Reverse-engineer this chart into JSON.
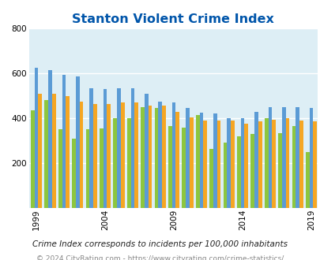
{
  "title": "Stanton Violent Crime Index",
  "subtitle": "Crime Index corresponds to incidents per 100,000 inhabitants",
  "copyright": "© 2024 CityRating.com - https://www.cityrating.com/crime-statistics/",
  "years": [
    1999,
    2000,
    2001,
    2002,
    2003,
    2004,
    2005,
    2006,
    2007,
    2008,
    2009,
    2010,
    2011,
    2012,
    2013,
    2014,
    2015,
    2016,
    2017,
    2018,
    2019
  ],
  "stanton": [
    435,
    480,
    350,
    310,
    350,
    355,
    400,
    400,
    450,
    445,
    365,
    360,
    415,
    265,
    290,
    320,
    330,
    400,
    335,
    365,
    250
  ],
  "california": [
    625,
    615,
    595,
    585,
    535,
    530,
    535,
    535,
    510,
    475,
    470,
    445,
    425,
    420,
    400,
    400,
    430,
    450,
    450,
    450,
    445
  ],
  "national": [
    510,
    510,
    500,
    475,
    465,
    465,
    470,
    470,
    455,
    455,
    430,
    405,
    390,
    390,
    390,
    375,
    385,
    395,
    400,
    390,
    385
  ],
  "ylim": [
    0,
    800
  ],
  "yticks": [
    200,
    400,
    600,
    800
  ],
  "xtick_years": [
    1999,
    2004,
    2009,
    2014,
    2019
  ],
  "bar_width": 0.27,
  "stanton_color": "#8dc63f",
  "california_color": "#5b9bd5",
  "national_color": "#f5a623",
  "axis_bg": "#ddeef5",
  "grid_color": "#ffffff",
  "title_color": "#0055aa",
  "subtitle_color": "#222222",
  "copyright_color": "#888888",
  "title_fontsize": 11.5,
  "subtitle_fontsize": 7.5,
  "copyright_fontsize": 6.5,
  "tick_fontsize": 7.5,
  "legend_fontsize": 8.5
}
